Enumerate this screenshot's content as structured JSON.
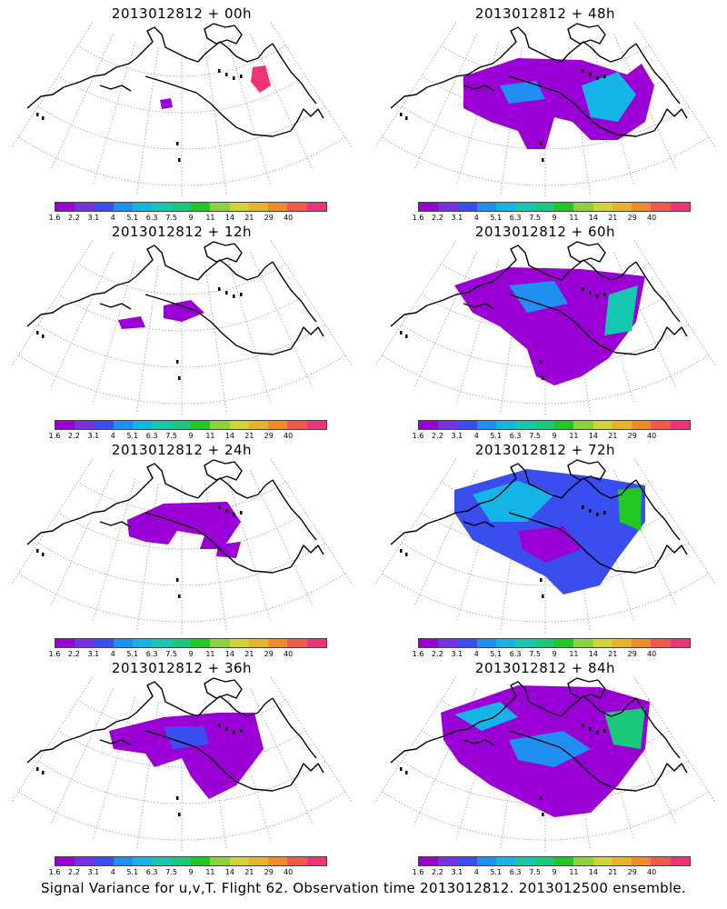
{
  "panels": [
    {
      "title": "2013012812 + 00h"
    },
    {
      "title": "2013012812 + 48h"
    },
    {
      "title": "2013012812 + 12h"
    },
    {
      "title": "2013012812 + 60h"
    },
    {
      "title": "2013012812 + 24h"
    },
    {
      "title": "2013012812 + 72h"
    },
    {
      "title": "2013012812 + 36h"
    },
    {
      "title": "2013012812 + 84h"
    }
  ],
  "colorbar": {
    "labels": [
      "1.6",
      "2.2",
      "3.1",
      "4",
      "5.1",
      "6.3",
      "7.5",
      "9",
      "11",
      "14",
      "21",
      "29",
      "40"
    ],
    "colors": [
      "#9a00d6",
      "#7a2fe0",
      "#3a4ef0",
      "#1f8ff2",
      "#14b4e6",
      "#14c8b0",
      "#19c87a",
      "#20c820",
      "#8cd23c",
      "#d2d232",
      "#e6b428",
      "#f08c28",
      "#f05a46",
      "#f0327a"
    ]
  },
  "footer": "Signal Variance for u,v,T. Flight 62. Observation time 2013012812. 2013012500 ensemble."
}
